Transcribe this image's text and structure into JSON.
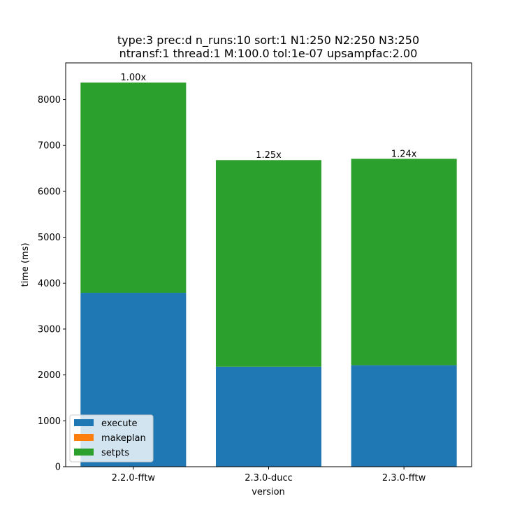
{
  "chart_data": {
    "type": "bar",
    "stacked": true,
    "title_lines": [
      "type:3 prec:d n_runs:10 sort:1 N1:250 N2:250 N3:250",
      "ntransf:1 thread:1 M:100.0 tol:1e-07 upsampfac:2.00"
    ],
    "xlabel": "version",
    "ylabel": "time (ms)",
    "ylim": [
      0,
      8800
    ],
    "yticks": [
      0,
      1000,
      2000,
      3000,
      4000,
      5000,
      6000,
      7000,
      8000
    ],
    "categories": [
      "2.2.0-fftw",
      "2.3.0-ducc",
      "2.3.0-fftw"
    ],
    "series": [
      {
        "name": "execute",
        "color": "#1f77b4",
        "values": [
          3790,
          2180,
          2210
        ]
      },
      {
        "name": "makeplan",
        "color": "#ff7f0e",
        "values": [
          0,
          0,
          0
        ]
      },
      {
        "name": "setpts",
        "color": "#2ca02c",
        "values": [
          4580,
          4500,
          4500
        ]
      }
    ],
    "bar_labels": [
      "1.00x",
      "1.25x",
      "1.24x"
    ],
    "legend": {
      "position": "lower-left"
    },
    "grid": false
  }
}
